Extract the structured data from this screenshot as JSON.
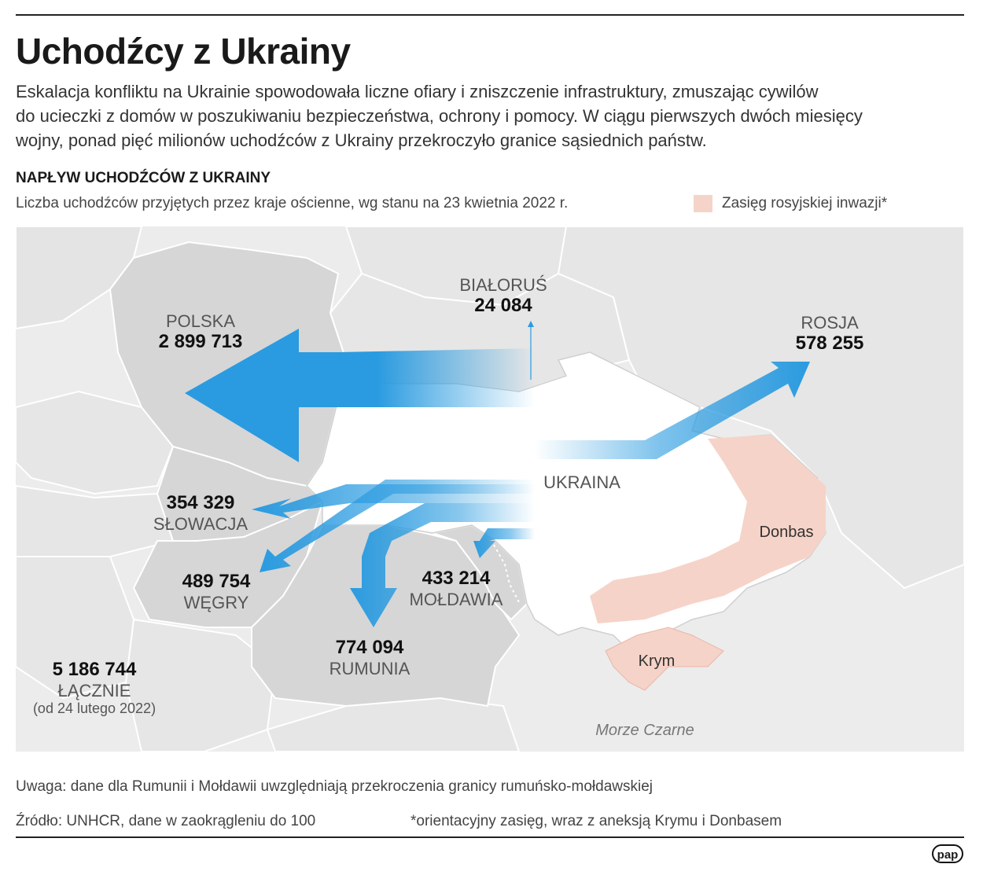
{
  "title": "Uchodźcy z Ukrainy",
  "lead": {
    "line1": "Eskalacja konfliktu na Ukrainie spowodowała liczne ofiary i zniszczenie infrastruktury, zmuszając cywilów",
    "line2": "do ucieczki z domów w poszukiwaniu bezpieczeństwa, ochrony i pomocy. W ciągu pierwszych dwóch miesięcy",
    "line3": "wojny, ponad pięć milionów uchodźców z Ukrainy przekroczyło granice sąsiednich państw."
  },
  "section_title": "NAPŁYW UCHODŹCÓW Z UKRAINY",
  "subtitle": "Liczba uchodźców przyjętych przez kraje ościenne, wg stanu na 23 kwietnia 2022 r.",
  "legend": {
    "label": "Zasięg rosyjskiej inwazji*",
    "color": "#f6d3c8"
  },
  "colors": {
    "arrow": "#2a9be0",
    "country": "#d6d6d6",
    "ukraine": "#ffffff",
    "invasion": "#f6d3c8",
    "background": "#ececec"
  },
  "countries": {
    "polska": {
      "name": "POLSKA",
      "value": "2 899 713"
    },
    "bialorus": {
      "name": "BIAŁORUŚ",
      "value": "24 084"
    },
    "rosja": {
      "name": "ROSJA",
      "value": "578 255"
    },
    "slowacja": {
      "name": "SŁOWACJA",
      "value": "354 329"
    },
    "wegry": {
      "name": "WĘGRY",
      "value": "489 754"
    },
    "moldawia": {
      "name": "MOŁDAWIA",
      "value": "433 214"
    },
    "rumunia": {
      "name": "RUMUNIA",
      "value": "774 094"
    }
  },
  "regions": {
    "ukraina": "UKRAINA",
    "donbas": "Donbas",
    "krym": "Krym",
    "sea": "Morze Czarne"
  },
  "total": {
    "value": "5 186 744",
    "label": "ŁĄCZNIE",
    "since": "(od 24 lutego 2022)"
  },
  "note": "Uwaga: dane dla Rumunii i Mołdawii uwzględniają przekroczenia granicy rumuńsko-mołdawskiej",
  "source": "Źródło: UNHCR, dane w zaokrągleniu do 100",
  "footnote": "*orientacyjny zasięg, wraz z aneksją Krymu i Donbasem",
  "logo": "pap"
}
